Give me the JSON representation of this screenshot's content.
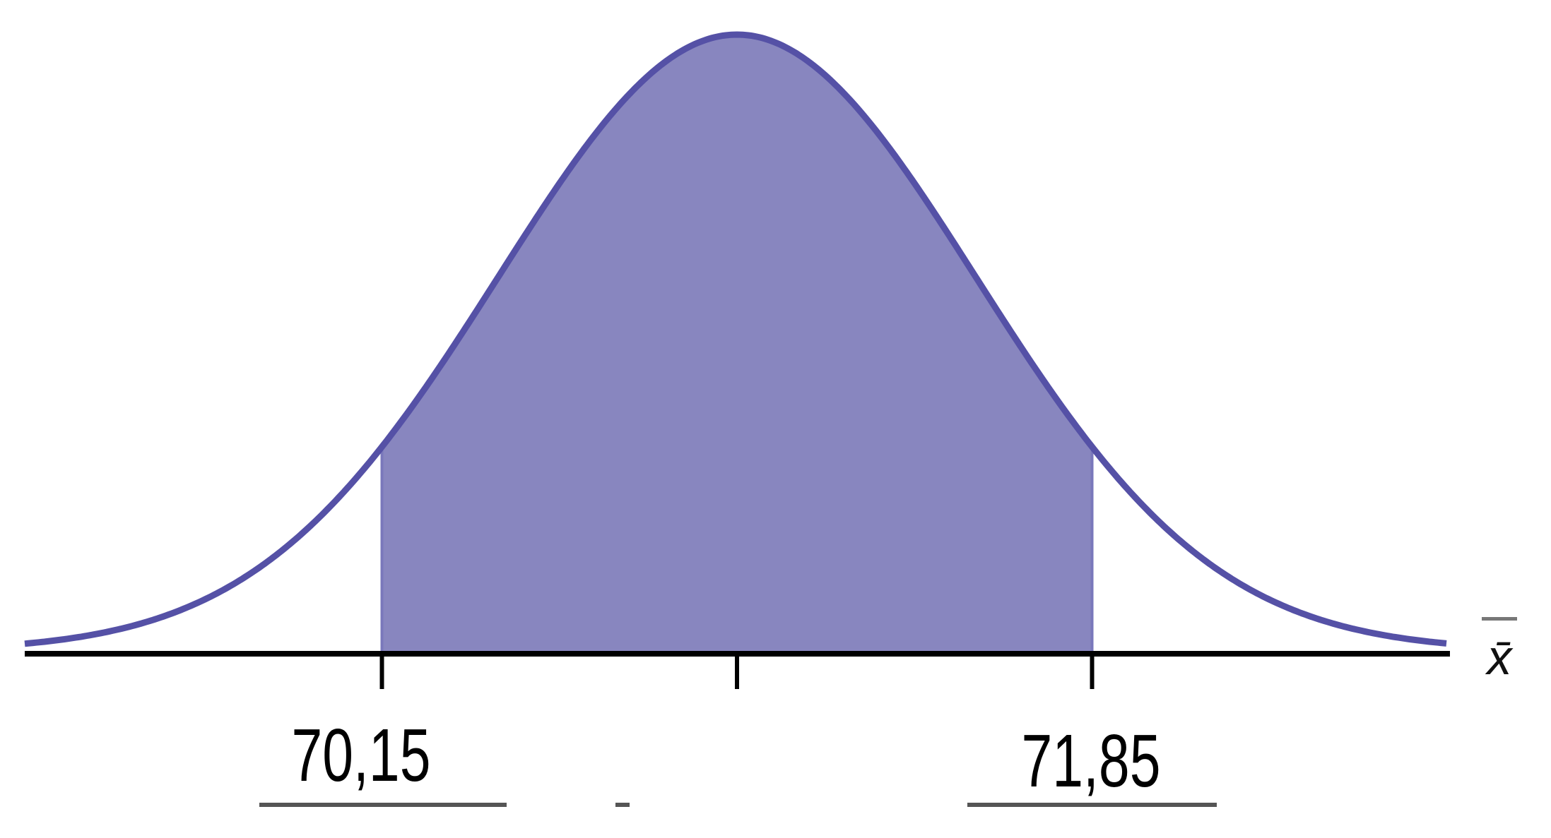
{
  "chart_data": {
    "type": "area",
    "distribution": "normal",
    "xlabel": "x̄",
    "ticks": [
      {
        "value": 70.15,
        "label": "70,15"
      },
      {
        "value": 71.0,
        "label": ""
      },
      {
        "value": 71.85,
        "label": "71,85"
      }
    ],
    "shaded_interval": [
      70.15,
      71.85
    ],
    "mean": 71.0,
    "grid": false,
    "legend": "none",
    "colors": {
      "fill": "#8886bf",
      "curve": "#5551a6",
      "axis": "#000000",
      "underline": "#555555"
    }
  }
}
